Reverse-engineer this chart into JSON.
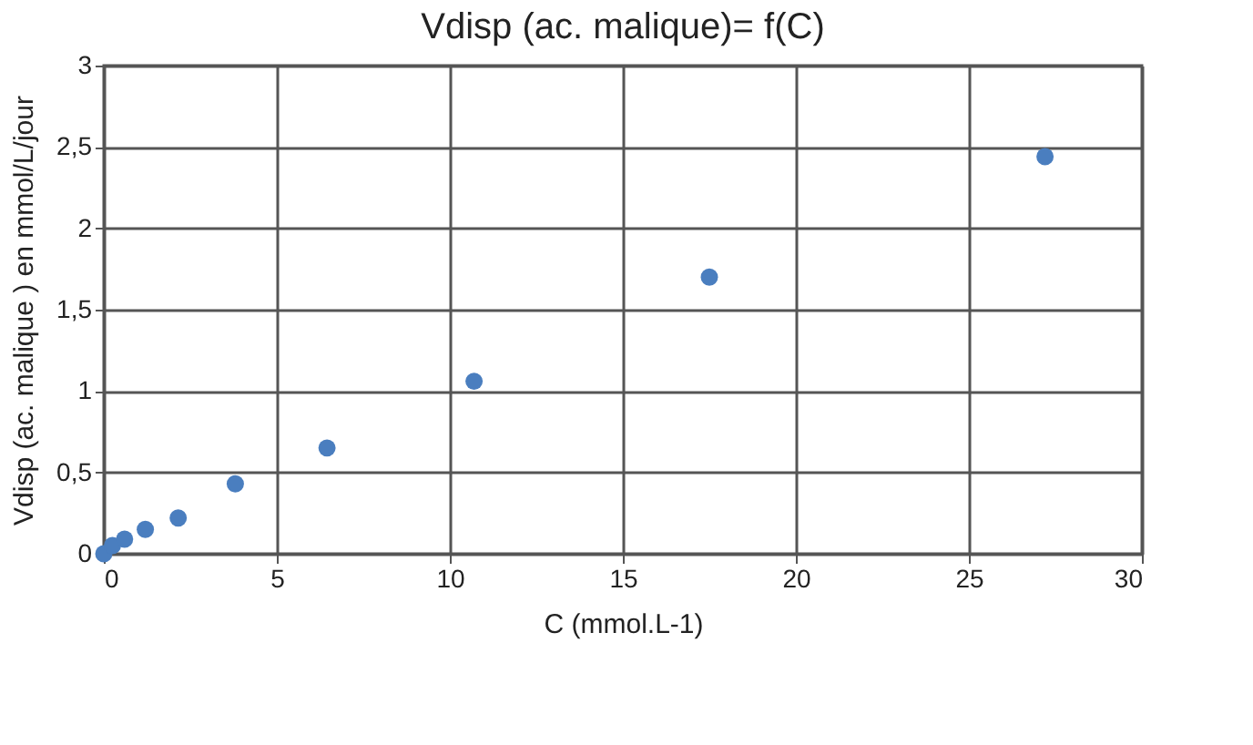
{
  "chart_data": {
    "type": "scatter",
    "title": "Vdisp (ac. malique)= f(C)",
    "xlabel": "C (mmol.L-1)",
    "ylabel": "Vdisp (ac. malique ) en mmol/L/jour",
    "x": [
      0,
      0.25,
      0.6,
      1.2,
      2.15,
      3.8,
      6.45,
      10.7,
      17.5,
      27.2
    ],
    "series": [
      {
        "color": "#4a7ebf",
        "values": [
          0,
          0.05,
          0.09,
          0.15,
          0.22,
          0.43,
          0.65,
          1.06,
          1.7,
          2.44
        ]
      }
    ],
    "xlim": [
      0,
      30
    ],
    "xticks": [
      0,
      5,
      10,
      15,
      20,
      25,
      30
    ],
    "ylim": [
      0,
      3
    ],
    "yticks": [
      0,
      {
        "value": 0.5,
        "label": "0,5"
      },
      1,
      {
        "value": 1.5,
        "label": "1,5"
      },
      2,
      {
        "value": 2.5,
        "label": "2,5"
      },
      3
    ],
    "grid": true,
    "marker": "circle",
    "legend": false
  }
}
